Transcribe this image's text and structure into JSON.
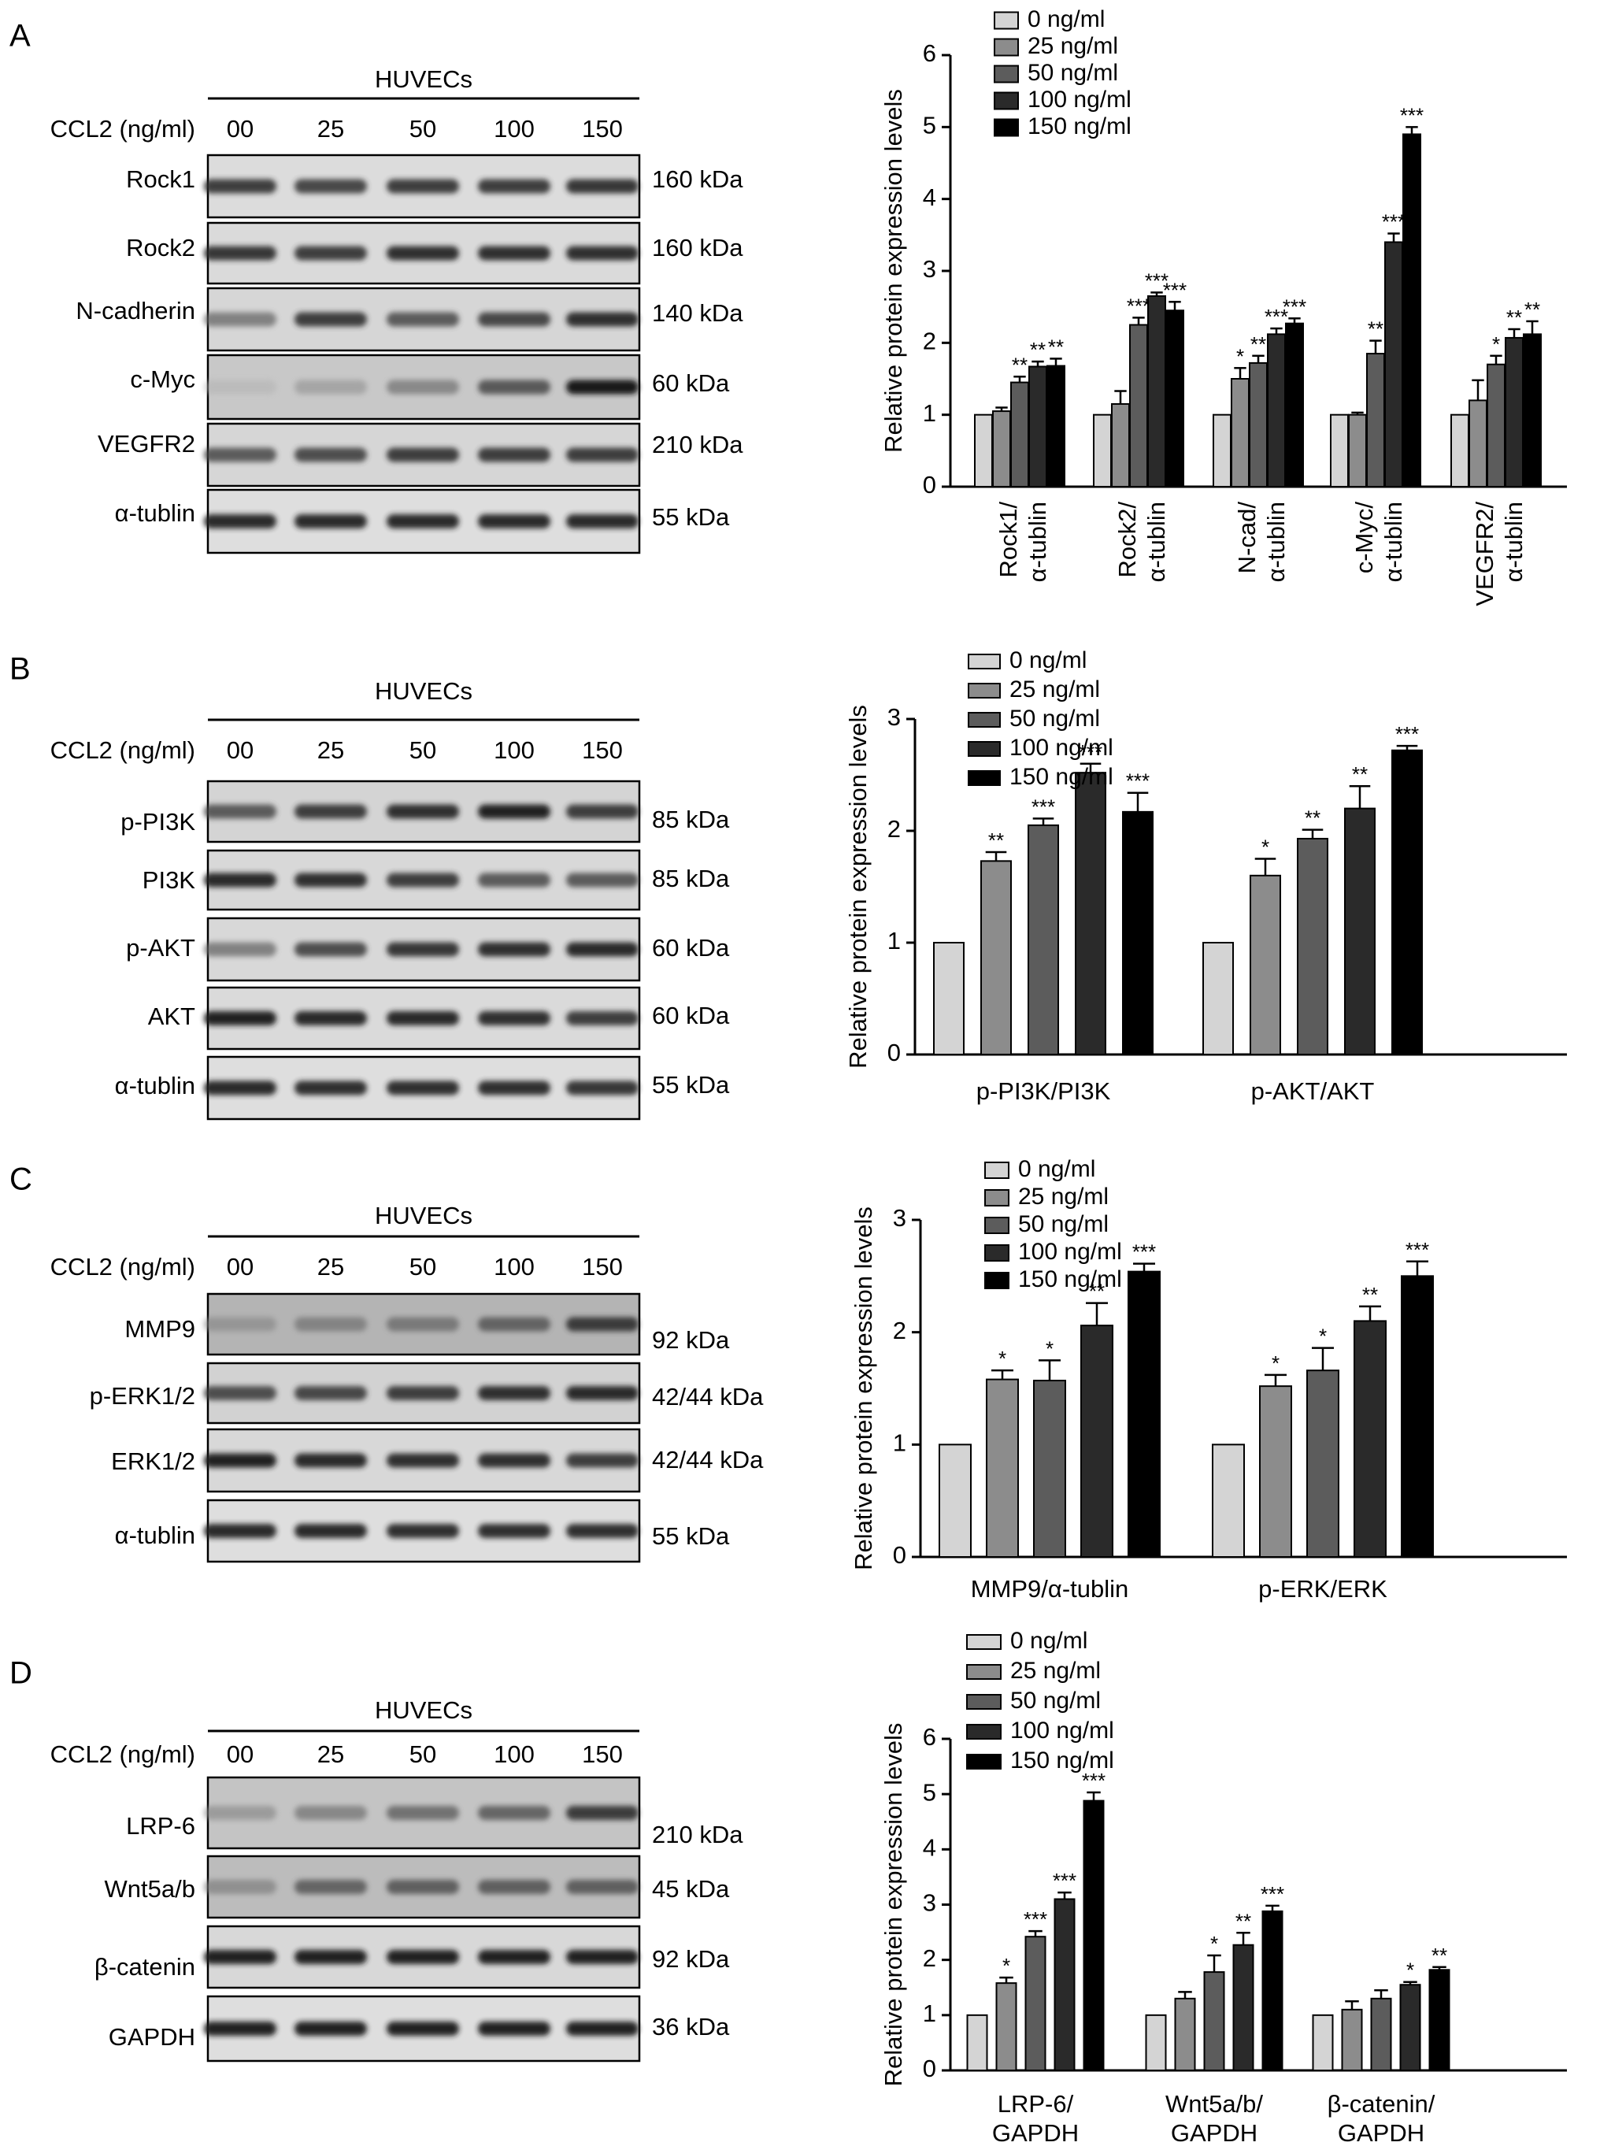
{
  "figure": {
    "panels": [
      {
        "letter": "A",
        "blot": {
          "header": "HUVECs",
          "ccl2_label": "CCL2 (ng/ml)",
          "lanes": [
            "00",
            "25",
            "50",
            "100",
            "150"
          ],
          "rows": [
            {
              "protein": "Rock1",
              "kda": "160 kDa",
              "background": "#dcdcdc",
              "intensity": [
                0.85,
                0.82,
                0.85,
                0.85,
                0.88
              ]
            },
            {
              "protein": "Rock2",
              "kda": "160 kDa",
              "background": "#dadada",
              "intensity": [
                0.88,
                0.85,
                0.9,
                0.9,
                0.9
              ]
            },
            {
              "protein": "N-cadherin",
              "kda": "140 kDa",
              "background": "#d6d6d6",
              "intensity": [
                0.6,
                0.85,
                0.75,
                0.82,
                0.9
              ]
            },
            {
              "protein": "c-Myc",
              "kda": "60 kDa",
              "background": "#c8c8c8",
              "intensity": [
                0.25,
                0.4,
                0.55,
                0.75,
                0.97
              ]
            },
            {
              "protein": "VEGFR2",
              "kda": "210 kDa",
              "background": "#d6d6d6",
              "intensity": [
                0.75,
                0.8,
                0.85,
                0.85,
                0.85
              ]
            },
            {
              "protein": "α-tublin",
              "kda": "55 kDa",
              "background": "#dedede",
              "intensity": [
                0.92,
                0.92,
                0.92,
                0.92,
                0.92
              ]
            }
          ]
        }
      },
      {
        "letter": "B",
        "blot": {
          "header": "HUVECs",
          "ccl2_label": "CCL2 (ng/ml)",
          "lanes": [
            "00",
            "25",
            "50",
            "100",
            "150"
          ],
          "rows": [
            {
              "protein": "p-PI3K",
              "kda": "85 kDa",
              "background": "#d4d4d4",
              "intensity": [
                0.75,
                0.85,
                0.9,
                0.95,
                0.85
              ]
            },
            {
              "protein": "PI3K",
              "kda": "85 kDa",
              "background": "#d8d8d8",
              "intensity": [
                0.92,
                0.9,
                0.85,
                0.75,
                0.75
              ]
            },
            {
              "protein": "p-AKT",
              "kda": "60 kDa",
              "background": "#d8d8d8",
              "intensity": [
                0.6,
                0.8,
                0.88,
                0.9,
                0.92
              ]
            },
            {
              "protein": "AKT",
              "kda": "60 kDa",
              "background": "#dadada",
              "intensity": [
                0.95,
                0.92,
                0.92,
                0.9,
                0.85
              ]
            },
            {
              "protein": "α-tublin",
              "kda": "55 kDa",
              "background": "#dedede",
              "intensity": [
                0.92,
                0.9,
                0.9,
                0.9,
                0.88
              ]
            }
          ]
        }
      },
      {
        "letter": "C",
        "blot": {
          "header": "HUVECs",
          "ccl2_label": "CCL2 (ng/ml)",
          "lanes": [
            "00",
            "25",
            "50",
            "100",
            "150"
          ],
          "rows": [
            {
              "protein": "MMP9",
              "kda": "92 kDa",
              "background": "#b4b4b4",
              "intensity": [
                0.45,
                0.55,
                0.6,
                0.7,
                0.85
              ]
            },
            {
              "protein": "p-ERK1/2",
              "kda": "42/44 kDa",
              "background": "#d2d2d2",
              "intensity": [
                0.8,
                0.82,
                0.85,
                0.9,
                0.92
              ]
            },
            {
              "protein": "ERK1/2",
              "kda": "42/44 kDa",
              "background": "#d8d8d8",
              "intensity": [
                0.95,
                0.92,
                0.9,
                0.9,
                0.85
              ]
            },
            {
              "protein": "α-tublin",
              "kda": "55 kDa",
              "background": "#dedede",
              "intensity": [
                0.92,
                0.92,
                0.9,
                0.9,
                0.9
              ]
            }
          ]
        }
      },
      {
        "letter": "D",
        "blot": {
          "header": "HUVECs",
          "ccl2_label": "CCL2 (ng/ml)",
          "lanes": [
            "00",
            "25",
            "50",
            "100",
            "150"
          ],
          "rows": [
            {
              "protein": "LRP-6",
              "kda": "210 kDa",
              "background": "#c4c4c4",
              "intensity": [
                0.45,
                0.55,
                0.65,
                0.7,
                0.85
              ]
            },
            {
              "protein": "Wnt5a/b",
              "kda": "45 kDa",
              "background": "#bcbcbc",
              "intensity": [
                0.5,
                0.7,
                0.72,
                0.72,
                0.72
              ]
            },
            {
              "protein": "β-catenin",
              "kda": "92 kDa",
              "background": "#d8d8d8",
              "intensity": [
                0.95,
                0.95,
                0.95,
                0.95,
                0.95
              ]
            },
            {
              "protein": "GAPDH",
              "kda": "36 kDa",
              "background": "#dedede",
              "intensity": [
                0.95,
                0.95,
                0.95,
                0.95,
                0.95
              ]
            }
          ]
        }
      }
    ],
    "legend_entries": [
      "0 ng/ml",
      "25 ng/ml",
      "50 ng/ml",
      "100 ng/ml",
      "150 ng/ml"
    ],
    "series_colors": [
      "#d4d4d4",
      "#8c8c8c",
      "#5c5c5c",
      "#2a2a2a",
      "#000000"
    ]
  },
  "chart_data": [
    {
      "type": "bar",
      "ylabel": "Relative protein expression levels",
      "ylim": [
        0,
        6
      ],
      "yticks": [
        "0",
        "1",
        "2",
        "3",
        "4",
        "5",
        "6"
      ],
      "legend_position": "top-left",
      "categories": [
        [
          "Rock1/",
          "α-tublin"
        ],
        [
          "Rock2/",
          "α-tublin"
        ],
        [
          "N-cad/",
          "α-tublin"
        ],
        [
          "c-Myc/",
          "α-tublin"
        ],
        [
          "VEGFR2/",
          "α-tublin"
        ]
      ],
      "series": [
        {
          "name": "0 ng/ml",
          "values": [
            1.0,
            1.0,
            1.0,
            1.0,
            1.0
          ],
          "errors": [
            0,
            0,
            0,
            0,
            0
          ],
          "sig": [
            "",
            "",
            "",
            "",
            ""
          ]
        },
        {
          "name": "25 ng/ml",
          "values": [
            1.05,
            1.15,
            1.5,
            1.0,
            1.2
          ],
          "errors": [
            0.05,
            0.18,
            0.15,
            0.03,
            0.28
          ],
          "sig": [
            "",
            "",
            "*",
            "",
            ""
          ]
        },
        {
          "name": "50 ng/ml",
          "values": [
            1.45,
            2.25,
            1.72,
            1.85,
            1.7
          ],
          "errors": [
            0.08,
            0.1,
            0.1,
            0.18,
            0.12
          ],
          "sig": [
            "**",
            "***",
            "**",
            "**",
            "*"
          ]
        },
        {
          "name": "100 ng/ml",
          "values": [
            1.67,
            2.65,
            2.12,
            3.4,
            2.07
          ],
          "errors": [
            0.07,
            0.05,
            0.08,
            0.12,
            0.12
          ],
          "sig": [
            "**",
            "***",
            "***",
            "***",
            "**"
          ]
        },
        {
          "name": "150 ng/ml",
          "values": [
            1.68,
            2.45,
            2.27,
            4.9,
            2.12
          ],
          "errors": [
            0.1,
            0.12,
            0.07,
            0.1,
            0.18
          ],
          "sig": [
            "**",
            "***",
            "***",
            "***",
            "**"
          ]
        }
      ]
    },
    {
      "type": "bar",
      "ylabel": "Relative protein expression levels",
      "ylim": [
        0,
        3
      ],
      "yticks": [
        "0",
        "1",
        "2",
        "3"
      ],
      "legend_position": "top-left",
      "categories": [
        [
          "p-PI3K/PI3K"
        ],
        [
          "p-AKT/AKT"
        ]
      ],
      "series": [
        {
          "name": "0 ng/ml",
          "values": [
            1.0,
            1.0
          ],
          "errors": [
            0,
            0
          ],
          "sig": [
            "",
            ""
          ]
        },
        {
          "name": "25 ng/ml",
          "values": [
            1.73,
            1.6
          ],
          "errors": [
            0.08,
            0.15
          ],
          "sig": [
            "**",
            "*"
          ]
        },
        {
          "name": "50 ng/ml",
          "values": [
            2.05,
            1.93
          ],
          "errors": [
            0.06,
            0.08
          ],
          "sig": [
            "***",
            "**"
          ]
        },
        {
          "name": "100 ng/ml",
          "values": [
            2.52,
            2.2
          ],
          "errors": [
            0.08,
            0.2
          ],
          "sig": [
            "***",
            "**"
          ]
        },
        {
          "name": "150 ng/ml",
          "values": [
            2.17,
            2.72
          ],
          "errors": [
            0.17,
            0.04
          ],
          "sig": [
            "***",
            "***"
          ]
        }
      ]
    },
    {
      "type": "bar",
      "ylabel": "Relative protein expression levels",
      "ylim": [
        0,
        3
      ],
      "yticks": [
        "0",
        "1",
        "2",
        "3"
      ],
      "legend_position": "top-left",
      "categories": [
        [
          "MMP9/α-tublin"
        ],
        [
          "p-ERK/ERK"
        ]
      ],
      "series": [
        {
          "name": "0 ng/ml",
          "values": [
            1.0,
            1.0
          ],
          "errors": [
            0,
            0
          ],
          "sig": [
            "",
            ""
          ]
        },
        {
          "name": "25 ng/ml",
          "values": [
            1.58,
            1.52
          ],
          "errors": [
            0.08,
            0.1
          ],
          "sig": [
            "*",
            "*"
          ]
        },
        {
          "name": "50 ng/ml",
          "values": [
            1.57,
            1.66
          ],
          "errors": [
            0.18,
            0.2
          ],
          "sig": [
            "*",
            "*"
          ]
        },
        {
          "name": "100 ng/ml",
          "values": [
            2.06,
            2.1
          ],
          "errors": [
            0.2,
            0.13
          ],
          "sig": [
            "**",
            "**"
          ]
        },
        {
          "name": "150 ng/ml",
          "values": [
            2.54,
            2.5
          ],
          "errors": [
            0.07,
            0.13
          ],
          "sig": [
            "***",
            "***"
          ]
        }
      ]
    },
    {
      "type": "bar",
      "ylabel": "Relative protein expression levels",
      "ylim": [
        0,
        6
      ],
      "yticks": [
        "0",
        "1",
        "2",
        "3",
        "4",
        "5",
        "6"
      ],
      "legend_position": "top-left",
      "categories": [
        [
          "LRP-6/",
          "GAPDH"
        ],
        [
          "Wnt5a/b/",
          "GAPDH"
        ],
        [
          "β-catenin/",
          "GAPDH"
        ]
      ],
      "series": [
        {
          "name": "0 ng/ml",
          "values": [
            1.0,
            1.0,
            1.0
          ],
          "errors": [
            0,
            0,
            0
          ],
          "sig": [
            "",
            "",
            ""
          ]
        },
        {
          "name": "25 ng/ml",
          "values": [
            1.58,
            1.3,
            1.1
          ],
          "errors": [
            0.1,
            0.12,
            0.15
          ],
          "sig": [
            "*",
            "",
            ""
          ]
        },
        {
          "name": "50 ng/ml",
          "values": [
            2.42,
            1.78,
            1.3
          ],
          "errors": [
            0.1,
            0.3,
            0.15
          ],
          "sig": [
            "***",
            "*",
            ""
          ]
        },
        {
          "name": "100 ng/ml",
          "values": [
            3.1,
            2.27,
            1.55
          ],
          "errors": [
            0.12,
            0.22,
            0.05
          ],
          "sig": [
            "***",
            "**",
            "*"
          ]
        },
        {
          "name": "150 ng/ml",
          "values": [
            4.88,
            2.88,
            1.82
          ],
          "errors": [
            0.15,
            0.1,
            0.05
          ],
          "sig": [
            "***",
            "***",
            "**"
          ]
        }
      ]
    }
  ]
}
